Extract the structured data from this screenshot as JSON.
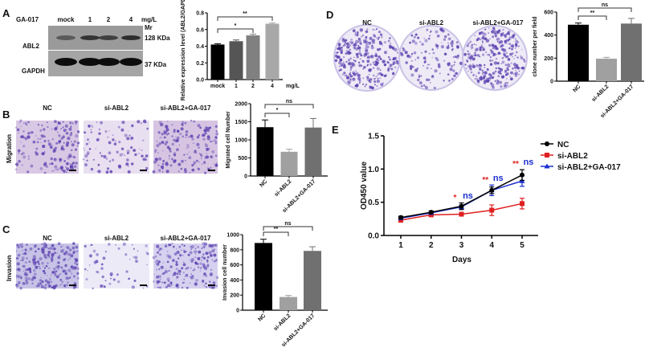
{
  "panels": {
    "A": {
      "letter": "A",
      "treatment_label": "GA-017",
      "lanes": [
        "mock",
        "1",
        "2",
        "4"
      ],
      "lane_unit": "mg/L",
      "mr_label": "Mr",
      "abl2_label": "ABL2",
      "abl2_size": "128 KDa",
      "gapdh_label": "GAPDH",
      "gapdh_size": "37 KDa"
    },
    "B": {
      "letter": "B",
      "row_label": "Migration",
      "image_titles": [
        "NC",
        "si-ABL2",
        "si-ABL2+GA-017"
      ]
    },
    "C": {
      "letter": "C",
      "row_label": "Invasion",
      "image_titles": [
        "NC",
        "si-ABL2",
        "si-ABL2+GA-017"
      ]
    },
    "D": {
      "letter": "D",
      "image_titles": [
        "NC",
        "si-ABL2",
        "si-ABL2+GA-017"
      ]
    },
    "E": {
      "letter": "E"
    }
  },
  "colors": {
    "stain_purple": "#5a3fb0",
    "nc": "#000000",
    "si_abl2": "#e02020",
    "si_abl2_ga017": "#1a2fd0"
  },
  "chart_data": [
    {
      "id": "A",
      "type": "bar",
      "categories": [
        "mock",
        "1",
        "2",
        "4"
      ],
      "values": [
        0.42,
        0.46,
        0.53,
        0.67
      ],
      "errors": [
        0.01,
        0.015,
        0.015,
        0.01
      ],
      "bar_colors": [
        "#000000",
        "#555555",
        "#808080",
        "#a8a8a8"
      ],
      "ylabel": "Relative expression level (ABL2/GAPDH)",
      "xunit": "mg/L",
      "ylim": [
        0,
        0.8
      ],
      "yticks": [
        "0.0",
        "0.2",
        "0.4",
        "0.6",
        "0.8"
      ],
      "significance": [
        {
          "from": 0,
          "to": 2,
          "label": "*"
        },
        {
          "from": 0,
          "to": 3,
          "label": "**"
        }
      ]
    },
    {
      "id": "B",
      "type": "bar",
      "categories": [
        "NC",
        "si-ABL2",
        "si-ABL2+GA-017"
      ],
      "values": [
        1350,
        670,
        1340
      ],
      "errors": [
        200,
        70,
        250
      ],
      "bar_colors": [
        "#000000",
        "#a0a0a0",
        "#707070"
      ],
      "ylabel": "Migrated cell Number",
      "ylim": [
        0,
        2000
      ],
      "yticks": [
        "0",
        "500",
        "1000",
        "1500",
        "2000"
      ],
      "significance": [
        {
          "from": 0,
          "to": 1,
          "label": "*"
        },
        {
          "from": 0,
          "to": 2,
          "label": "ns"
        }
      ]
    },
    {
      "id": "C",
      "type": "bar",
      "categories": [
        "NC",
        "si-ABL2",
        "si-ABL2+GA-017"
      ],
      "values": [
        890,
        175,
        785
      ],
      "errors": [
        50,
        20,
        55
      ],
      "bar_colors": [
        "#000000",
        "#a0a0a0",
        "#707070"
      ],
      "ylabel": "Invasion cell number",
      "ylim": [
        0,
        1000
      ],
      "yticks": [
        "0",
        "200",
        "400",
        "600",
        "800",
        "1000"
      ],
      "significance": [
        {
          "from": 0,
          "to": 1,
          "label": "**"
        },
        {
          "from": 0,
          "to": 2,
          "label": "ns"
        }
      ]
    },
    {
      "id": "D",
      "type": "bar",
      "categories": [
        "NC",
        "si-ABL2",
        "si-ABL2+GA-017"
      ],
      "values": [
        490,
        195,
        500
      ],
      "errors": [
        15,
        12,
        45
      ],
      "bar_colors": [
        "#000000",
        "#a0a0a0",
        "#707070"
      ],
      "ylabel": "clone number per field",
      "ylim": [
        0,
        600
      ],
      "yticks": [
        "0",
        "200",
        "400",
        "600"
      ],
      "significance": [
        {
          "from": 0,
          "to": 1,
          "label": "**"
        },
        {
          "from": 0,
          "to": 2,
          "label": "ns"
        }
      ]
    },
    {
      "id": "E",
      "type": "line",
      "x": [
        1,
        2,
        3,
        4,
        5
      ],
      "xticks": [
        "1",
        "2",
        "3",
        "4",
        "5"
      ],
      "xlabel": "Days",
      "ylabel": "OD450 value",
      "ylim": [
        0,
        1.5
      ],
      "yticks": [
        "0.0",
        "0.5",
        "1.0",
        "1.5"
      ],
      "legend": "right",
      "series": [
        {
          "name": "NC",
          "color": "#000000",
          "marker": "circle",
          "values": [
            0.27,
            0.35,
            0.44,
            0.68,
            0.91
          ],
          "errors": [
            0.02,
            0.02,
            0.05,
            0.05,
            0.08
          ]
        },
        {
          "name": "si-ABL2",
          "color": "#e02020",
          "marker": "square",
          "values": [
            0.23,
            0.31,
            0.32,
            0.38,
            0.48
          ],
          "errors": [
            0.02,
            0.02,
            0.02,
            0.08,
            0.08
          ]
        },
        {
          "name": "si-ABL2+GA-017",
          "color": "#1a2fd0",
          "marker": "triangle",
          "values": [
            0.26,
            0.34,
            0.43,
            0.68,
            0.82
          ],
          "errors": [
            0.02,
            0.02,
            0.03,
            0.08,
            0.08
          ]
        }
      ],
      "annotations": [
        {
          "day": 3,
          "red": "*",
          "blue": "ns"
        },
        {
          "day": 4,
          "red": "**",
          "blue": "ns"
        },
        {
          "day": 5,
          "red": "**",
          "blue": "ns"
        }
      ]
    }
  ]
}
